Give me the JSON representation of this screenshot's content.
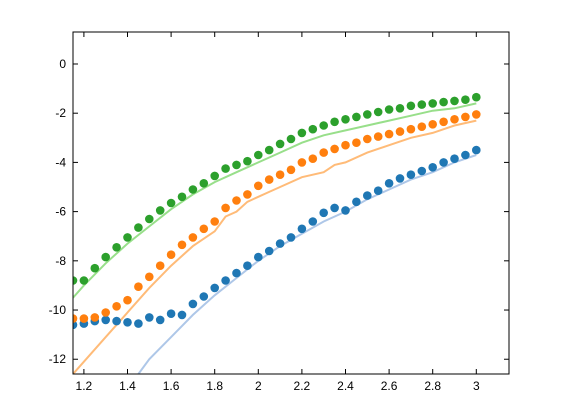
{
  "chart_data": {
    "type": "scatter",
    "title": "",
    "xlabel": "",
    "ylabel": "",
    "xlim": [
      1.15,
      3.15
    ],
    "ylim": [
      -12.6,
      1.3
    ],
    "xticks": [
      1.2,
      1.4,
      1.6,
      1.8,
      2,
      2.2,
      2.4,
      2.6,
      2.8,
      3
    ],
    "xtick_labels": [
      "1.2",
      "1.4",
      "1.6",
      "1.8",
      "2",
      "2.2",
      "2.4",
      "2.6",
      "2.8",
      "3"
    ],
    "yticks": [
      0,
      -2,
      -4,
      -6,
      -8,
      -10,
      -12
    ],
    "ytick_labels": [
      "0",
      "-2",
      "-4",
      "-6",
      "-8",
      "-10",
      "-12"
    ],
    "grid": false,
    "legend": "none",
    "series": [
      {
        "color": "#1f77b4",
        "line_color": "#aec7e8",
        "points_x": [
          1.15,
          1.2,
          1.25,
          1.3,
          1.35,
          1.4,
          1.45,
          1.5,
          1.55,
          1.6,
          1.65,
          1.7,
          1.75,
          1.8,
          1.85,
          1.9,
          1.95,
          2.0,
          2.05,
          2.1,
          2.15,
          2.2,
          2.25,
          2.3,
          2.35,
          2.4,
          2.45,
          2.5,
          2.55,
          2.6,
          2.65,
          2.7,
          2.75,
          2.8,
          2.85,
          2.9,
          2.95,
          3.0
        ],
        "points_y": [
          -10.6,
          -10.55,
          -10.45,
          -10.4,
          -10.45,
          -10.5,
          -10.55,
          -10.3,
          -10.4,
          -10.15,
          -10.2,
          -9.75,
          -9.45,
          -9.1,
          -8.8,
          -8.5,
          -8.2,
          -7.85,
          -7.6,
          -7.3,
          -7.05,
          -6.7,
          -6.4,
          -6.05,
          -5.85,
          -5.95,
          -5.6,
          -5.35,
          -5.15,
          -4.85,
          -4.65,
          -4.5,
          -4.35,
          -4.2,
          -4.0,
          -3.85,
          -3.7,
          -3.5
        ],
        "line_x": [
          1.45,
          1.5,
          1.6,
          1.7,
          1.8,
          1.9,
          2.0,
          2.1,
          2.2,
          2.3,
          2.4,
          2.5,
          2.6,
          2.7,
          2.8,
          2.9,
          3.0
        ],
        "line_y": [
          -12.6,
          -12.0,
          -11.1,
          -10.2,
          -9.4,
          -8.7,
          -8.0,
          -7.4,
          -6.9,
          -6.4,
          -6.0,
          -5.5,
          -5.1,
          -4.7,
          -4.4,
          -4.0,
          -3.7
        ]
      },
      {
        "color": "#ff7f0e",
        "line_color": "#ffbb78",
        "points_x": [
          1.15,
          1.2,
          1.25,
          1.3,
          1.35,
          1.4,
          1.45,
          1.5,
          1.55,
          1.6,
          1.65,
          1.7,
          1.75,
          1.8,
          1.85,
          1.9,
          1.95,
          2.0,
          2.05,
          2.1,
          2.15,
          2.2,
          2.25,
          2.3,
          2.35,
          2.4,
          2.45,
          2.5,
          2.55,
          2.6,
          2.65,
          2.7,
          2.75,
          2.8,
          2.85,
          2.9,
          2.95,
          3.0
        ],
        "points_y": [
          -10.35,
          -10.35,
          -10.3,
          -10.1,
          -9.85,
          -9.6,
          -9.05,
          -8.65,
          -8.2,
          -7.75,
          -7.35,
          -7.05,
          -6.7,
          -6.4,
          -5.85,
          -5.55,
          -5.3,
          -4.95,
          -4.7,
          -4.5,
          -4.3,
          -4.0,
          -3.85,
          -3.6,
          -3.45,
          -3.3,
          -3.2,
          -3.05,
          -2.95,
          -2.85,
          -2.75,
          -2.65,
          -2.55,
          -2.45,
          -2.35,
          -2.25,
          -2.15,
          -2.05
        ],
        "line_x": [
          1.15,
          1.2,
          1.3,
          1.4,
          1.5,
          1.6,
          1.7,
          1.8,
          1.85,
          1.9,
          1.95,
          2.0,
          2.05,
          2.1,
          2.2,
          2.3,
          2.35,
          2.4,
          2.5,
          2.6,
          2.7,
          2.8,
          2.9,
          3.0
        ],
        "line_y": [
          -12.6,
          -12.1,
          -11.1,
          -10.1,
          -9.1,
          -8.2,
          -7.4,
          -6.8,
          -6.2,
          -6.0,
          -5.6,
          -5.4,
          -5.2,
          -5.0,
          -4.6,
          -4.4,
          -4.1,
          -4.0,
          -3.6,
          -3.3,
          -3.0,
          -2.8,
          -2.5,
          -2.3
        ]
      },
      {
        "color": "#2ca02c",
        "line_color": "#98df8a",
        "points_x": [
          1.15,
          1.2,
          1.25,
          1.3,
          1.35,
          1.4,
          1.45,
          1.5,
          1.55,
          1.6,
          1.65,
          1.7,
          1.75,
          1.8,
          1.85,
          1.9,
          1.95,
          2.0,
          2.05,
          2.1,
          2.15,
          2.2,
          2.25,
          2.3,
          2.35,
          2.4,
          2.45,
          2.5,
          2.55,
          2.6,
          2.65,
          2.7,
          2.75,
          2.8,
          2.85,
          2.9,
          2.95,
          3.0
        ],
        "points_y": [
          -8.8,
          -8.8,
          -8.3,
          -7.85,
          -7.45,
          -7.05,
          -6.65,
          -6.3,
          -5.95,
          -5.65,
          -5.4,
          -5.1,
          -4.85,
          -4.55,
          -4.25,
          -4.1,
          -3.95,
          -3.7,
          -3.5,
          -3.25,
          -3.05,
          -2.8,
          -2.65,
          -2.5,
          -2.35,
          -2.25,
          -2.15,
          -2.05,
          -1.95,
          -1.85,
          -1.8,
          -1.7,
          -1.65,
          -1.6,
          -1.55,
          -1.5,
          -1.45,
          -1.35
        ],
        "line_x": [
          1.15,
          1.2,
          1.3,
          1.4,
          1.5,
          1.6,
          1.7,
          1.8,
          1.9,
          2.0,
          2.1,
          2.2,
          2.3,
          2.4,
          2.5,
          2.6,
          2.7,
          2.8,
          2.9,
          3.0
        ],
        "line_y": [
          -9.5,
          -9.0,
          -8.1,
          -7.3,
          -6.6,
          -5.9,
          -5.3,
          -4.8,
          -4.4,
          -4.0,
          -3.6,
          -3.2,
          -2.9,
          -2.7,
          -2.5,
          -2.3,
          -2.1,
          -1.9,
          -1.8,
          -1.6
        ]
      }
    ]
  }
}
